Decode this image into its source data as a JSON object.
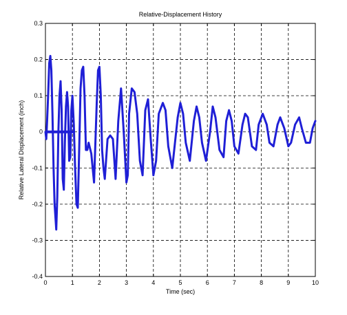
{
  "chart_data": {
    "type": "line",
    "title": "Relative-Displacement History",
    "xlabel": "Time (sec)",
    "ylabel": "Relative Lateral Displacement (inch)",
    "xlim": [
      0,
      10
    ],
    "ylim": [
      -0.4,
      0.3
    ],
    "grid": true,
    "grid_style": "dashed",
    "x_ticks": [
      0,
      1,
      2,
      3,
      4,
      5,
      6,
      7,
      8,
      9,
      10
    ],
    "x_tick_labels": [
      "0",
      "1",
      "2",
      "3",
      "4",
      "5",
      "6",
      "7",
      "8",
      "9",
      "10"
    ],
    "y_ticks": [
      -0.4,
      -0.3,
      -0.2,
      -0.1,
      0,
      0.1,
      0.2,
      0.3
    ],
    "y_tick_labels": [
      "-0.4",
      "-0.3",
      "-0.2",
      "-0.1",
      "0",
      "0.1",
      "0.2",
      "0.3"
    ],
    "series": [
      {
        "color": "#1f1fd6",
        "line_width": 3,
        "x": [
          0.0,
          0.03,
          0.06,
          0.1,
          0.14,
          0.18,
          0.22,
          0.26,
          0.3,
          0.34,
          0.4,
          0.44,
          0.48,
          0.52,
          0.56,
          0.6,
          0.64,
          0.68,
          0.72,
          0.76,
          0.8,
          0.84,
          0.88,
          0.92,
          0.96,
          1.0,
          1.05,
          1.1,
          1.15,
          1.2,
          1.25,
          1.3,
          1.35,
          1.4,
          1.45,
          1.5,
          1.55,
          1.6,
          1.7,
          1.8,
          1.9,
          1.95,
          2.0,
          2.05,
          2.1,
          2.15,
          2.2,
          2.3,
          2.4,
          2.5,
          2.6,
          2.7,
          2.8,
          2.9,
          3.0,
          3.05,
          3.1,
          3.2,
          3.3,
          3.4,
          3.5,
          3.6,
          3.7,
          3.8,
          3.9,
          4.0,
          4.1,
          4.2,
          4.35,
          4.45,
          4.55,
          4.7,
          4.9,
          5.0,
          5.1,
          5.2,
          5.35,
          5.5,
          5.6,
          5.7,
          5.8,
          5.95,
          6.1,
          6.2,
          6.3,
          6.45,
          6.6,
          6.7,
          6.8,
          6.9,
          7.0,
          7.15,
          7.3,
          7.4,
          7.5,
          7.65,
          7.8,
          7.9,
          8.05,
          8.2,
          8.3,
          8.45,
          8.6,
          8.7,
          8.85,
          9.0,
          9.1,
          9.25,
          9.4,
          9.5,
          9.65,
          9.8,
          9.9,
          10.0
        ],
        "y": [
          0.0,
          -0.02,
          0.03,
          0.1,
          0.19,
          0.21,
          0.17,
          0.05,
          -0.1,
          -0.2,
          -0.27,
          -0.18,
          0.0,
          0.1,
          0.14,
          0.06,
          -0.13,
          -0.16,
          -0.03,
          0.07,
          0.11,
          0.07,
          -0.08,
          -0.07,
          0.06,
          0.1,
          0.02,
          -0.1,
          -0.2,
          -0.21,
          -0.05,
          0.12,
          0.17,
          0.18,
          0.1,
          -0.05,
          -0.05,
          -0.03,
          -0.06,
          -0.14,
          0.08,
          0.17,
          0.18,
          0.1,
          -0.05,
          -0.1,
          -0.13,
          -0.02,
          -0.01,
          -0.02,
          -0.13,
          0.03,
          0.12,
          0.0,
          -0.14,
          -0.12,
          0.05,
          0.12,
          0.11,
          0.05,
          -0.08,
          -0.12,
          0.06,
          0.09,
          -0.02,
          -0.12,
          -0.08,
          0.05,
          0.08,
          0.06,
          -0.04,
          -0.1,
          0.04,
          0.08,
          0.05,
          -0.03,
          -0.08,
          0.03,
          0.07,
          0.04,
          -0.03,
          -0.08,
          0.0,
          0.07,
          0.04,
          -0.05,
          -0.07,
          0.03,
          0.06,
          0.03,
          -0.04,
          -0.06,
          0.02,
          0.05,
          0.04,
          -0.04,
          -0.05,
          0.02,
          0.05,
          0.02,
          -0.03,
          -0.04,
          0.02,
          0.04,
          0.01,
          -0.04,
          -0.03,
          0.02,
          0.04,
          0.01,
          -0.03,
          -0.03,
          0.01,
          0.03
        ]
      },
      {
        "color": "#1f1fd6",
        "line_width": 4,
        "x": [
          0.05,
          1.0
        ],
        "y": [
          0.0,
          0.0
        ]
      }
    ]
  }
}
